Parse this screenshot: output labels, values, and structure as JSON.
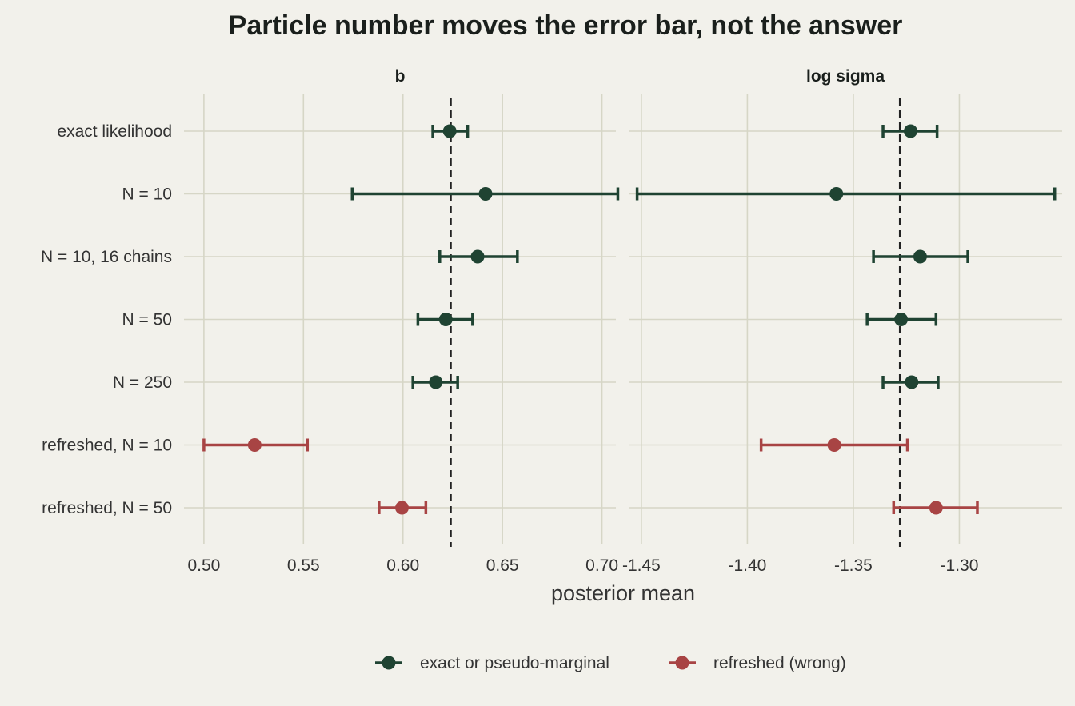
{
  "chart_data": {
    "type": "dot-errorbar",
    "title": "Particle number moves the error bar, not the answer",
    "xlabel": "posterior mean",
    "categories": [
      "exact likelihood",
      "N = 10",
      "N = 10, 16 chains",
      "N = 50",
      "N = 250",
      "refreshed, N = 10",
      "refreshed, N = 50"
    ],
    "groups": [
      "exact or pseudo-marginal",
      "exact or pseudo-marginal",
      "exact or pseudo-marginal",
      "exact or pseudo-marginal",
      "exact or pseudo-marginal",
      "refreshed (wrong)",
      "refreshed (wrong)"
    ],
    "colors": {
      "exact or pseudo-marginal": "#1f4332",
      "refreshed (wrong)": "#a84444"
    },
    "legend": {
      "position": "bottom",
      "entries": [
        "exact or pseudo-marginal",
        "refreshed (wrong)"
      ]
    },
    "panels": [
      {
        "strip": "b",
        "xlim": [
          0.49,
          0.707
        ],
        "ticks": [
          0.5,
          0.55,
          0.6,
          0.65,
          0.7
        ],
        "tick_labels": [
          "0.50",
          "0.55",
          "0.60",
          "0.65",
          "0.70"
        ],
        "reference_line": 0.624,
        "points": [
          {
            "mean": 0.6235,
            "lo": 0.615,
            "hi": 0.6325
          },
          {
            "mean": 0.6415,
            "lo": 0.5745,
            "hi": 0.708
          },
          {
            "mean": 0.6375,
            "lo": 0.6185,
            "hi": 0.6575
          },
          {
            "mean": 0.6215,
            "lo": 0.6075,
            "hi": 0.635
          },
          {
            "mean": 0.6165,
            "lo": 0.605,
            "hi": 0.6275
          },
          {
            "mean": 0.5255,
            "lo": 0.5,
            "hi": 0.552
          },
          {
            "mean": 0.5995,
            "lo": 0.588,
            "hi": 0.6115
          }
        ]
      },
      {
        "strip": "log sigma",
        "xlim": [
          -1.456,
          -1.2515
        ],
        "ticks": [
          -1.45,
          -1.4,
          -1.35,
          -1.3
        ],
        "tick_labels": [
          "-1.45",
          "-1.40",
          "-1.35",
          "-1.30"
        ],
        "reference_line": -1.328,
        "points": [
          {
            "mean": -1.323,
            "lo": -1.336,
            "hi": -1.3105
          },
          {
            "mean": -1.358,
            "lo": -1.452,
            "hi": -1.255
          },
          {
            "mean": -1.3185,
            "lo": -1.3405,
            "hi": -1.296
          },
          {
            "mean": -1.3275,
            "lo": -1.3435,
            "hi": -1.311
          },
          {
            "mean": -1.3225,
            "lo": -1.336,
            "hi": -1.31
          },
          {
            "mean": -1.359,
            "lo": -1.3935,
            "hi": -1.3245
          },
          {
            "mean": -1.311,
            "lo": -1.331,
            "hi": -1.2915
          }
        ]
      }
    ]
  }
}
